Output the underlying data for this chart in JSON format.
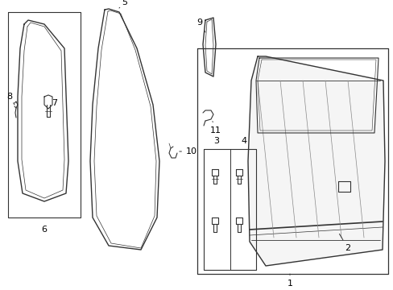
{
  "bg_color": "#ffffff",
  "line_color": "#333333",
  "label_color": "#000000",
  "figsize": [
    4.89,
    3.6
  ],
  "dpi": 100,
  "font_size": 8.0
}
